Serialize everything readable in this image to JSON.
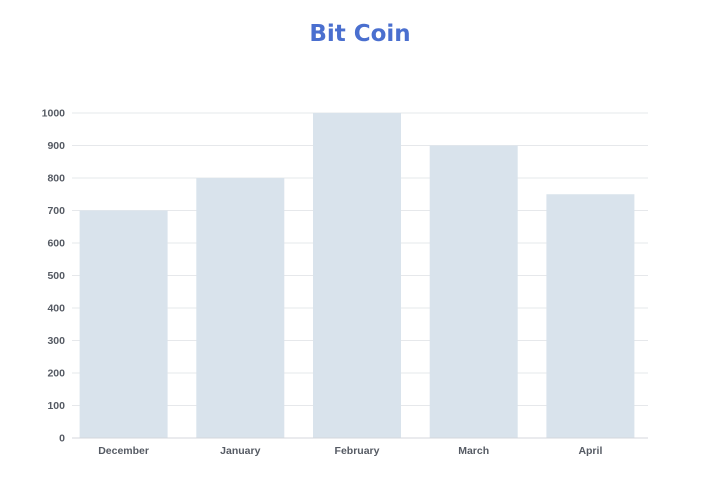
{
  "chart_data": {
    "type": "bar",
    "title": "Bit Coin",
    "xlabel": "",
    "ylabel": "",
    "categories": [
      "December",
      "January",
      "February",
      "March",
      "April"
    ],
    "values": [
      700,
      800,
      1000,
      900,
      750
    ],
    "ylim": [
      0,
      1000
    ],
    "y_ticks": [
      0,
      100,
      200,
      300,
      400,
      500,
      600,
      700,
      800,
      900,
      1000
    ],
    "grid": true,
    "legend": "none",
    "colors": {
      "bar": "#d9e3ec",
      "title": "#4a6fcf",
      "grid": "#e6e8eb",
      "axis": "#d4d7dc",
      "text": "#555a63"
    }
  }
}
